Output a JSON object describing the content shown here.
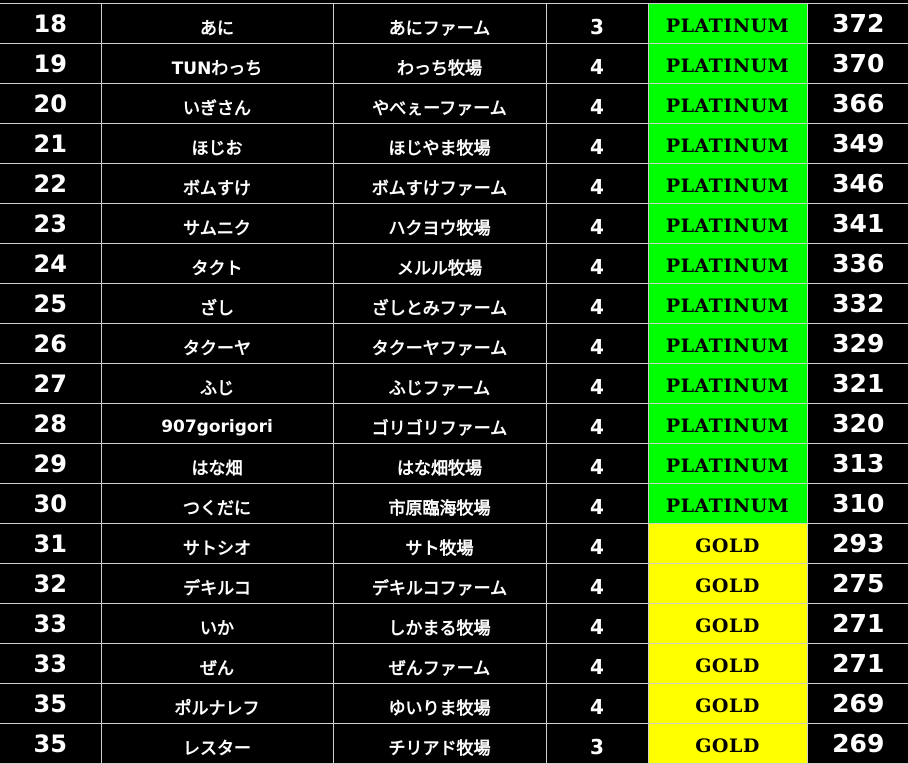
{
  "colors": {
    "PLATINUM": "#00ff00",
    "GOLD": "#ffff00",
    "background": "#000000",
    "grid": "#d0d0d0"
  },
  "rows": [
    {
      "rank": "18",
      "name": "あに",
      "farm": "あにファーム",
      "num": "3",
      "tier": "PLATINUM",
      "score": "372"
    },
    {
      "rank": "19",
      "name": "TUNわっち",
      "farm": "わっち牧場",
      "num": "4",
      "tier": "PLATINUM",
      "score": "370"
    },
    {
      "rank": "20",
      "name": "いぎさん",
      "farm": "やべぇーファーム",
      "num": "4",
      "tier": "PLATINUM",
      "score": "366"
    },
    {
      "rank": "21",
      "name": "ほじお",
      "farm": "ほじやま牧場",
      "num": "4",
      "tier": "PLATINUM",
      "score": "349"
    },
    {
      "rank": "22",
      "name": "ボムすけ",
      "farm": "ボムすけファーム",
      "num": "4",
      "tier": "PLATINUM",
      "score": "346"
    },
    {
      "rank": "23",
      "name": "サムニク",
      "farm": "ハクヨウ牧場",
      "num": "4",
      "tier": "PLATINUM",
      "score": "341"
    },
    {
      "rank": "24",
      "name": "タクト",
      "farm": "メルル牧場",
      "num": "4",
      "tier": "PLATINUM",
      "score": "336"
    },
    {
      "rank": "25",
      "name": "ざし",
      "farm": "ざしとみファーム",
      "num": "4",
      "tier": "PLATINUM",
      "score": "332"
    },
    {
      "rank": "26",
      "name": "タクーヤ",
      "farm": "タクーヤファーム",
      "num": "4",
      "tier": "PLATINUM",
      "score": "329"
    },
    {
      "rank": "27",
      "name": "ふじ",
      "farm": "ふじファーム",
      "num": "4",
      "tier": "PLATINUM",
      "score": "321"
    },
    {
      "rank": "28",
      "name": "907gorigori",
      "farm": "ゴリゴリファーム",
      "num": "4",
      "tier": "PLATINUM",
      "score": "320"
    },
    {
      "rank": "29",
      "name": "はな畑",
      "farm": "はな畑牧場",
      "num": "4",
      "tier": "PLATINUM",
      "score": "313"
    },
    {
      "rank": "30",
      "name": "つくだに",
      "farm": "市原臨海牧場",
      "num": "4",
      "tier": "PLATINUM",
      "score": "310"
    },
    {
      "rank": "31",
      "name": "サトシオ",
      "farm": "サト牧場",
      "num": "4",
      "tier": "GOLD",
      "score": "293"
    },
    {
      "rank": "32",
      "name": "デキルコ",
      "farm": "デキルコファーム",
      "num": "4",
      "tier": "GOLD",
      "score": "275"
    },
    {
      "rank": "33",
      "name": "いか",
      "farm": "しかまる牧場",
      "num": "4",
      "tier": "GOLD",
      "score": "271"
    },
    {
      "rank": "33",
      "name": "ぜん",
      "farm": "ぜんファーム",
      "num": "4",
      "tier": "GOLD",
      "score": "271"
    },
    {
      "rank": "35",
      "name": "ポルナレフ",
      "farm": "ゆいりま牧場",
      "num": "4",
      "tier": "GOLD",
      "score": "269"
    },
    {
      "rank": "35",
      "name": "レスター",
      "farm": "チリアド牧場",
      "num": "3",
      "tier": "GOLD",
      "score": "269"
    }
  ]
}
